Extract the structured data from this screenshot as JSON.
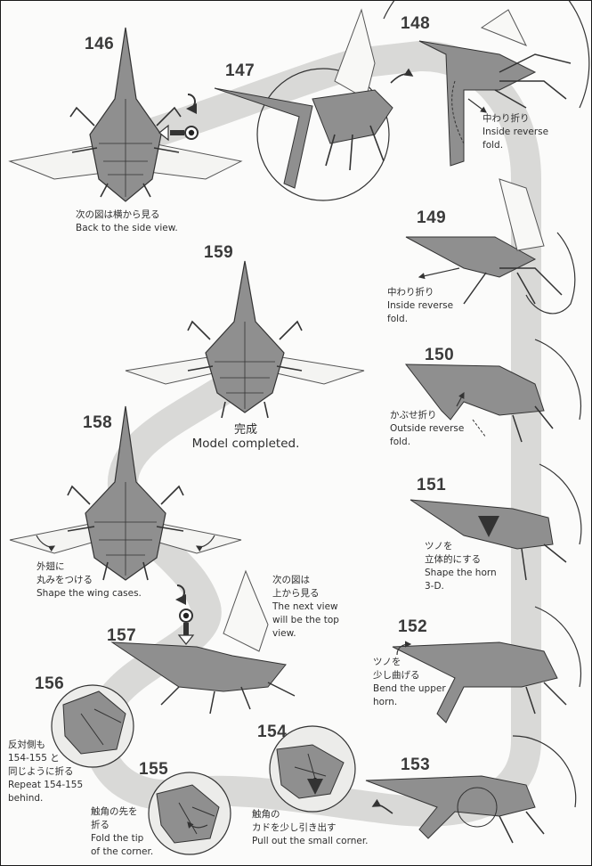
{
  "steps": {
    "s146": {
      "number": "146",
      "jp": "次の図は横から見る",
      "en": [
        "Back to the side view."
      ]
    },
    "s147": {
      "number": "147"
    },
    "s148": {
      "number": "148",
      "jp": "中わり折り",
      "en": [
        "Inside reverse",
        "fold."
      ]
    },
    "s149": {
      "number": "149",
      "jp": "中わり折り",
      "en": [
        "Inside reverse",
        "fold."
      ]
    },
    "s150": {
      "number": "150",
      "jp": "かぶせ折り",
      "en": [
        "Outside reverse",
        "fold."
      ]
    },
    "s151": {
      "number": "151",
      "jp": [
        "ツノを",
        "立体的にする"
      ],
      "en": [
        "Shape the horn",
        "3-D."
      ]
    },
    "s152": {
      "number": "152",
      "jp": [
        "ツノを",
        "少し曲げる"
      ],
      "en": [
        "Bend the upper",
        "horn."
      ]
    },
    "s153": {
      "number": "153"
    },
    "s154": {
      "number": "154",
      "jp": [
        "触角の",
        "カドを少し引き出す"
      ],
      "en": [
        "Pull out the small corner."
      ]
    },
    "s155": {
      "number": "155",
      "jp": [
        "触角の先を",
        "折る"
      ],
      "en": [
        "Fold the tip",
        "of the corner."
      ]
    },
    "s156": {
      "number": "156",
      "jp": [
        "反対側も",
        "154-155 と",
        "同じように折る"
      ],
      "en": [
        "Repeat 154-155",
        "behind."
      ]
    },
    "s157": {
      "number": "157",
      "jp": [
        "次の図は",
        "上から見る"
      ],
      "en": [
        "The next view",
        "will be the top",
        "view."
      ]
    },
    "s158": {
      "number": "158",
      "jp": [
        "外翅に",
        "丸みをつける"
      ],
      "en": [
        "Shape the wing cases."
      ]
    },
    "s159": {
      "number": "159",
      "jp": "完成",
      "en": "Model completed."
    }
  },
  "colors": {
    "ink": "#2e2e2e",
    "paper": "#8f8f8f",
    "path": "#d6d6d4",
    "wing": "#f4f4f2"
  }
}
